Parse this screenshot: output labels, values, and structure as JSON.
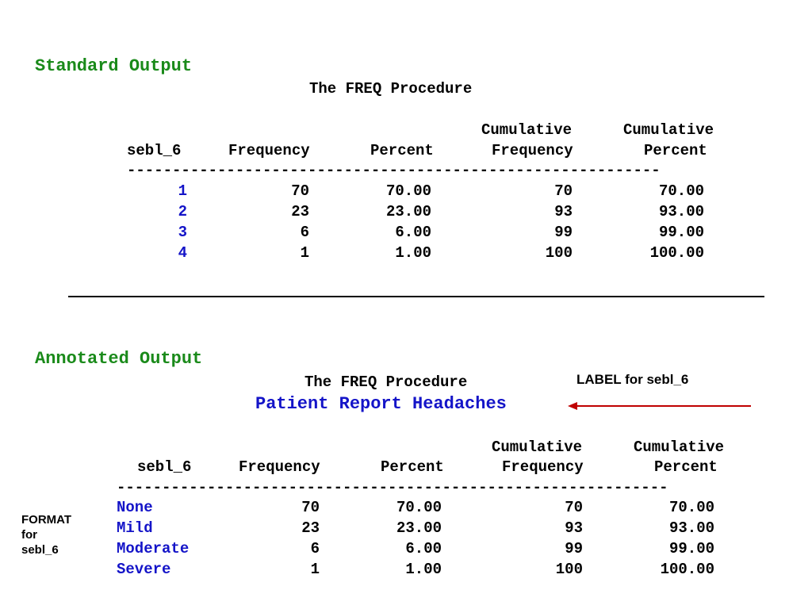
{
  "standard": {
    "heading": "Standard Output",
    "proc_title": "The FREQ Procedure",
    "headers": {
      "cum_top_1": "Cumulative",
      "cum_top_2": "Cumulative",
      "var": "sebl_6",
      "freq": "Frequency",
      "pct": "Percent",
      "cum_freq": "Frequency",
      "cum_pct": "Percent"
    },
    "rule": "-----------------------------------------------------------",
    "rows": [
      {
        "value": "1",
        "freq": "70",
        "pct": "70.00",
        "cum_freq": "70",
        "cum_pct": "70.00"
      },
      {
        "value": "2",
        "freq": "23",
        "pct": "23.00",
        "cum_freq": "93",
        "cum_pct": "93.00"
      },
      {
        "value": "3",
        "freq": "6",
        "pct": "6.00",
        "cum_freq": "99",
        "cum_pct": "99.00"
      },
      {
        "value": "4",
        "freq": "1",
        "pct": "1.00",
        "cum_freq": "100",
        "cum_pct": "100.00"
      }
    ]
  },
  "annotated": {
    "heading": "Annotated Output",
    "proc_title": "The FREQ Procedure",
    "label_title": "Patient Report Headaches",
    "label_callout": "LABEL for sebl_6",
    "format_callout": [
      "FORMAT",
      "for",
      "sebl_6"
    ],
    "headers": {
      "cum_top_1": "Cumulative",
      "cum_top_2": "Cumulative",
      "var": "sebl_6",
      "freq": "Frequency",
      "pct": "Percent",
      "cum_freq": "Frequency",
      "cum_pct": "Percent"
    },
    "rule": "-------------------------------------------------------------",
    "rows": [
      {
        "value": "None",
        "freq": "70",
        "pct": "70.00",
        "cum_freq": "70",
        "cum_pct": "70.00"
      },
      {
        "value": "Mild",
        "freq": "23",
        "pct": "23.00",
        "cum_freq": "93",
        "cum_pct": "93.00"
      },
      {
        "value": "Moderate",
        "freq": "6",
        "pct": "6.00",
        "cum_freq": "99",
        "cum_pct": "99.00"
      },
      {
        "value": "Severe",
        "freq": "1",
        "pct": "1.00",
        "cum_freq": "100",
        "cum_pct": "100.00"
      }
    ],
    "colors": {
      "arrow": "#c00000",
      "value_text": "#1414c8",
      "heading": "#1a8a1a"
    }
  }
}
